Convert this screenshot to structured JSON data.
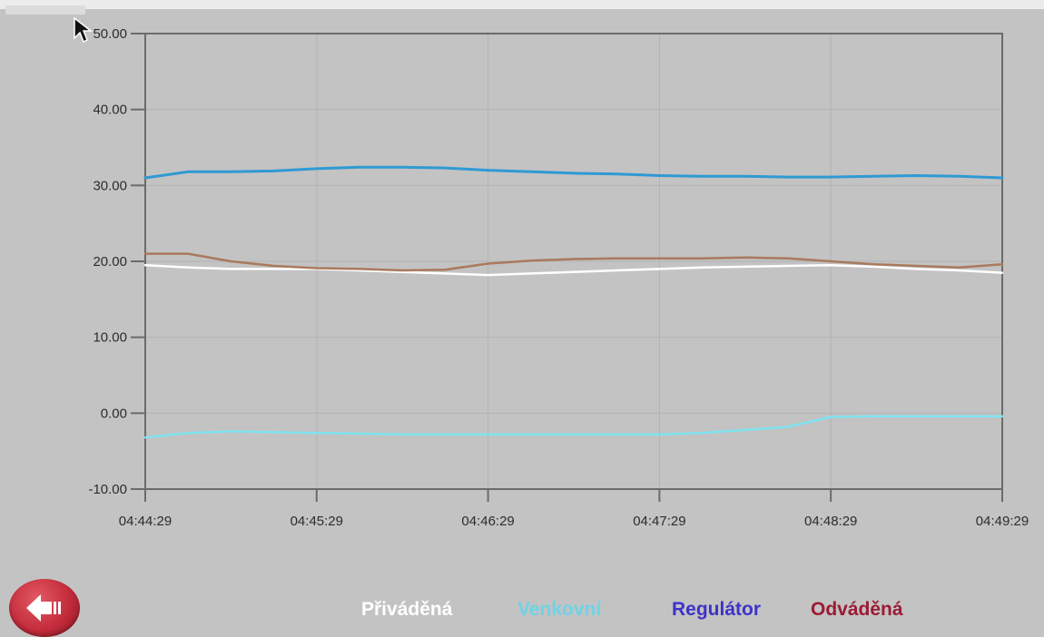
{
  "chart_data": {
    "type": "line",
    "title": "",
    "xlabel": "",
    "ylabel": "",
    "ylim": [
      -10,
      50
    ],
    "yticks": [
      "-10.00",
      "0.00",
      "10.00",
      "20.00",
      "30.00",
      "40.00",
      "50.00"
    ],
    "x_ticks": [
      "04:44:29",
      "04:45:29",
      "04:46:29",
      "04:47:29",
      "04:48:29",
      "04:49:29"
    ],
    "x_minutes": [
      0,
      0.25,
      0.5,
      0.75,
      1,
      1.25,
      1.5,
      1.75,
      2,
      2.25,
      2.5,
      2.75,
      3,
      3.25,
      3.5,
      3.75,
      4,
      4.25,
      4.5,
      4.75,
      5
    ],
    "grid": true,
    "legend_position": "bottom",
    "series": [
      {
        "name": "Přiváděná",
        "color": "#ffffff",
        "values": [
          19.5,
          19.2,
          19.0,
          19.0,
          19.0,
          18.8,
          18.6,
          18.4,
          18.2,
          18.4,
          18.6,
          18.8,
          19.0,
          19.2,
          19.3,
          19.4,
          19.5,
          19.3,
          19.0,
          18.8,
          18.5
        ]
      },
      {
        "name": "Venkovní",
        "color": "#7fe3f0",
        "values": [
          -3.2,
          -2.6,
          -2.4,
          -2.5,
          -2.6,
          -2.7,
          -2.8,
          -2.8,
          -2.8,
          -2.8,
          -2.8,
          -2.8,
          -2.8,
          -2.6,
          -2.2,
          -1.8,
          -0.5,
          -0.4,
          -0.4,
          -0.4,
          -0.4
        ]
      },
      {
        "name": "Regulátor",
        "color": "#2f9ad3",
        "values": [
          31.0,
          31.8,
          31.8,
          31.9,
          32.2,
          32.4,
          32.4,
          32.3,
          32.0,
          31.8,
          31.6,
          31.5,
          31.3,
          31.2,
          31.2,
          31.1,
          31.1,
          31.2,
          31.3,
          31.2,
          31.0
        ]
      },
      {
        "name": "Odváděná",
        "color": "#a97a5c",
        "values": [
          21.0,
          21.0,
          20.0,
          19.4,
          19.1,
          19.0,
          18.8,
          18.9,
          19.7,
          20.1,
          20.3,
          20.4,
          20.4,
          20.4,
          20.5,
          20.4,
          20.0,
          19.6,
          19.4,
          19.2,
          19.6
        ]
      }
    ]
  },
  "legend": [
    {
      "label": "Přiváděná",
      "color": "#ffffff"
    },
    {
      "label": "Venkovní",
      "color": "#6fd3e6"
    },
    {
      "label": "Regulátor",
      "color": "#3d33c9"
    },
    {
      "label": "Odváděná",
      "color": "#9b1b34"
    }
  ],
  "controls": {
    "back_icon": "arrow-left-icon"
  },
  "colors": {
    "background": "#c3c3c3",
    "axis": "#6b6b6b",
    "grid": "#b3b3b3",
    "back_button": "#c42c3b"
  }
}
